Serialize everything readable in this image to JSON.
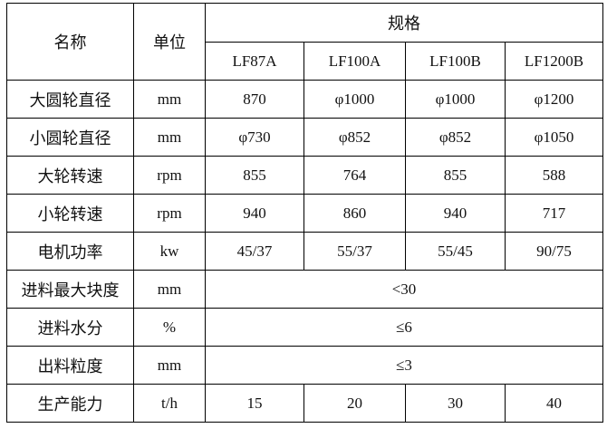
{
  "header": {
    "name": "名称",
    "unit": "单位",
    "spec": "规格",
    "models": [
      "LF87A",
      "LF100A",
      "LF100B",
      "LF1200B"
    ]
  },
  "rows": [
    {
      "name": "大圆轮直径",
      "unit": "mm",
      "values": [
        "870",
        "φ1000",
        "φ1000",
        "φ1200"
      ]
    },
    {
      "name": "小圆轮直径",
      "unit": "mm",
      "values": [
        "φ730",
        "φ852",
        "φ852",
        "φ1050"
      ]
    },
    {
      "name": "大轮转速",
      "unit": "rpm",
      "values": [
        "855",
        "764",
        "855",
        "588"
      ]
    },
    {
      "name": "小轮转速",
      "unit": "rpm",
      "values": [
        "940",
        "860",
        "940",
        "717"
      ]
    },
    {
      "name": "电机功率",
      "unit": "kw",
      "values": [
        "45/37",
        "55/37",
        "55/45",
        "90/75"
      ]
    }
  ],
  "merged_rows": [
    {
      "name": "进料最大块度",
      "unit": "mm",
      "value": "<30"
    },
    {
      "name": "进料水分",
      "unit": "%",
      "value": "≤6"
    },
    {
      "name": "出料粒度",
      "unit": "mm",
      "value": "≤3"
    }
  ],
  "last_row": {
    "name": "生产能力",
    "unit": "t/h",
    "values": [
      "15",
      "20",
      "30",
      "40"
    ]
  }
}
